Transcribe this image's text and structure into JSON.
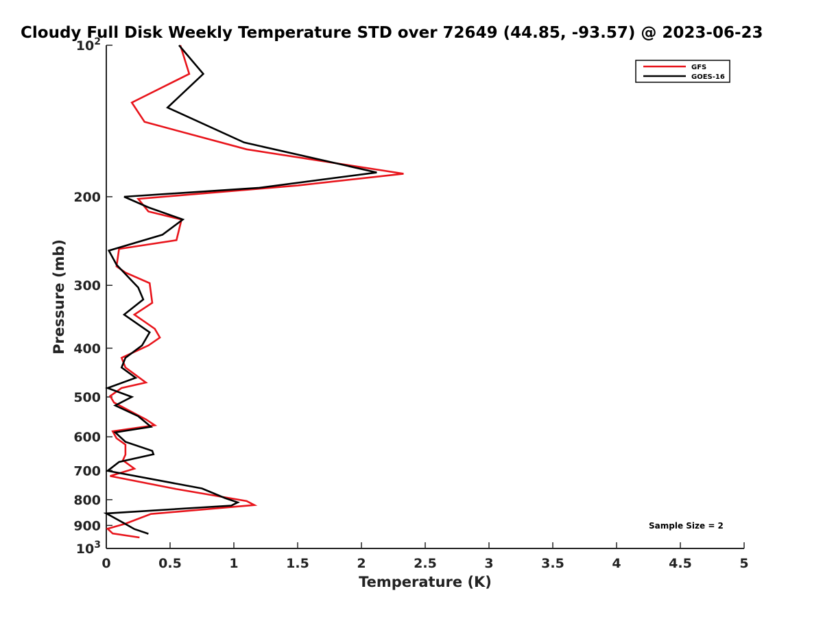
{
  "chart_data": {
    "type": "line",
    "title": "Cloudy Full Disk Weekly Temperature STD over 72649 (44.85, -93.57) @ 2023-06-23",
    "xlabel": "Temperature (K)",
    "ylabel": "Pressure (mb)",
    "xlim": [
      0,
      5
    ],
    "ylim": [
      100,
      1000
    ],
    "y_scale": "log",
    "y_reversed": true,
    "x_ticks": [
      0,
      0.5,
      1,
      1.5,
      2,
      2.5,
      3,
      3.5,
      4,
      4.5,
      5
    ],
    "x_tick_labels": [
      "0",
      "0.5",
      "1",
      "1.5",
      "2",
      "2.5",
      "3",
      "3.5",
      "4",
      "4.5",
      "5"
    ],
    "y_ticks": [
      200,
      300,
      400,
      500,
      600,
      700,
      800,
      900
    ],
    "y_tick_labels": [
      "200",
      "300",
      "400",
      "500",
      "600",
      "700",
      "800",
      "900"
    ],
    "y_end_ticks": [
      {
        "value": 100,
        "base": "10",
        "exp": "2"
      },
      {
        "value": 1000,
        "base": "10",
        "exp": "3"
      }
    ],
    "grid": false,
    "legend_position": "top-right",
    "annotation": "Sample Size = 2",
    "series": [
      {
        "name": "GFS",
        "color": "#e8141b",
        "points": [
          [
            0.58,
            100
          ],
          [
            0.65,
            114
          ],
          [
            0.2,
            130
          ],
          [
            0.3,
            142
          ],
          [
            1.1,
            161
          ],
          [
            2.33,
            180
          ],
          [
            1.5,
            190
          ],
          [
            0.25,
            202
          ],
          [
            0.33,
            214
          ],
          [
            0.59,
            222
          ],
          [
            0.55,
            244
          ],
          [
            0.1,
            254
          ],
          [
            0.08,
            275
          ],
          [
            0.15,
            283
          ],
          [
            0.34,
            297
          ],
          [
            0.36,
            325
          ],
          [
            0.22,
            343
          ],
          [
            0.38,
            366
          ],
          [
            0.42,
            381
          ],
          [
            0.33,
            395
          ],
          [
            0.12,
            418
          ],
          [
            0.15,
            437
          ],
          [
            0.31,
            468
          ],
          [
            0.12,
            480
          ],
          [
            0.03,
            498
          ],
          [
            0.06,
            513
          ],
          [
            0.16,
            529
          ],
          [
            0.31,
            554
          ],
          [
            0.38,
            569
          ],
          [
            0.05,
            585
          ],
          [
            0.08,
            604
          ],
          [
            0.15,
            622
          ],
          [
            0.15,
            651
          ],
          [
            0.13,
            668
          ],
          [
            0.22,
            694
          ],
          [
            0.03,
            718
          ],
          [
            0.55,
            762
          ],
          [
            1.1,
            805
          ],
          [
            1.16,
            820
          ],
          [
            0.35,
            854
          ],
          [
            0.15,
            893
          ],
          [
            0.01,
            914
          ],
          [
            0.05,
            934
          ],
          [
            0.26,
            951
          ]
        ]
      },
      {
        "name": "GOES-16",
        "color": "#000000",
        "points": [
          [
            0.57,
            100
          ],
          [
            0.76,
            114
          ],
          [
            0.48,
            133
          ],
          [
            1.08,
            156
          ],
          [
            2.12,
            179
          ],
          [
            1.2,
            192
          ],
          [
            0.14,
            200
          ],
          [
            0.33,
            210
          ],
          [
            0.6,
            222
          ],
          [
            0.44,
            238
          ],
          [
            0.02,
            256
          ],
          [
            0.08,
            273
          ],
          [
            0.25,
            303
          ],
          [
            0.29,
            320
          ],
          [
            0.14,
            343
          ],
          [
            0.34,
            372
          ],
          [
            0.28,
            395
          ],
          [
            0.15,
            418
          ],
          [
            0.12,
            437
          ],
          [
            0.23,
            458
          ],
          [
            0.01,
            480
          ],
          [
            0.2,
            500
          ],
          [
            0.07,
            520
          ],
          [
            0.25,
            546
          ],
          [
            0.35,
            573
          ],
          [
            0.07,
            588
          ],
          [
            0.15,
            614
          ],
          [
            0.36,
            640
          ],
          [
            0.37,
            650
          ],
          [
            0.1,
            673
          ],
          [
            0.01,
            701
          ],
          [
            0.75,
            760
          ],
          [
            0.93,
            794
          ],
          [
            1.03,
            810
          ],
          [
            0.98,
            822
          ],
          [
            0.0,
            852
          ],
          [
            0.15,
            894
          ],
          [
            0.22,
            915
          ],
          [
            0.33,
            935
          ]
        ]
      }
    ]
  }
}
